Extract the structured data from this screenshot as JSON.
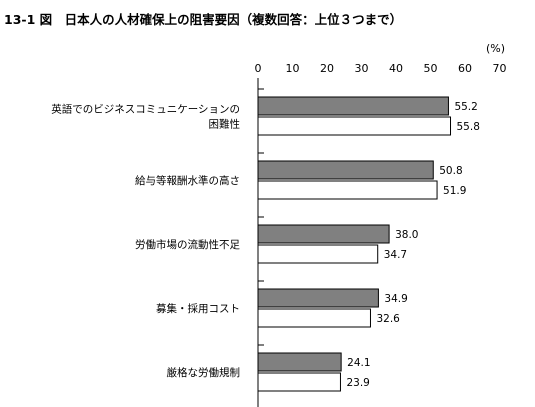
{
  "chart_data": {
    "type": "bar",
    "orientation": "horizontal",
    "title": "13-1 図　日本人の人材確保上の阻害要因（複数回答：上位３つまで）",
    "unit": "(%)",
    "x_ticks": [
      "0",
      "10",
      "20",
      "30",
      "40",
      "50",
      "60",
      "70"
    ],
    "xlim": [
      0,
      70
    ],
    "grid": false,
    "legend": "none",
    "categories": [
      [
        "英語でのビジネスコミュニケーションの",
        "困難性"
      ],
      [
        "給与等報酬水準の高さ"
      ],
      [
        "労働市場の流動性不足"
      ],
      [
        "募集・採用コスト"
      ],
      [
        "厳格な労働規制"
      ]
    ],
    "series": [
      {
        "color": "#808080",
        "values": [
          55.2,
          50.8,
          38.0,
          34.9,
          24.1
        ],
        "labels": [
          "55.2",
          "50.8",
          "38.0",
          "34.9",
          "24.1"
        ]
      },
      {
        "color": "#ffffff",
        "values": [
          55.8,
          51.9,
          34.7,
          32.6,
          23.9
        ],
        "labels": [
          "55.8",
          "51.9",
          "34.7",
          "32.6",
          "23.9"
        ]
      }
    ]
  }
}
